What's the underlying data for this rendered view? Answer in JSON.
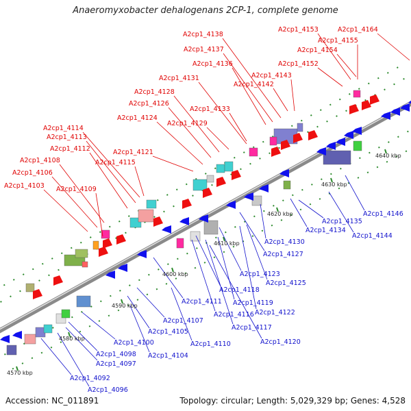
{
  "header": {
    "title": "Anaeromyxobacter dehalogenans 2CP-1, complete genome"
  },
  "footer": {
    "accession": "Accession: NC_011891",
    "topology": "Topology: circular; Length: 5,029,329 bp; Genes: 4,528"
  },
  "kbp_labels": [
    "4570 kbp",
    "4580 kbp",
    "4590 kbp",
    "4600 kbp",
    "4610 kbp",
    "4620 kbp",
    "4630 kbp",
    "4640 kbp"
  ],
  "genes_top": [
    "A2cp1_4103",
    "A2cp1_4106",
    "A2cp1_4108",
    "A2cp1_4109",
    "A2cp1_4112",
    "A2cp1_4113",
    "A2cp1_4114",
    "A2cp1_4115",
    "A2cp1_4121",
    "A2cp1_4124",
    "A2cp1_4126",
    "A2cp1_4128",
    "A2cp1_4129",
    "A2cp1_4131",
    "A2cp1_4133",
    "A2cp1_4136",
    "A2cp1_4137",
    "A2cp1_4138",
    "A2cp1_4142",
    "A2cp1_4143",
    "A2cp1_4152",
    "A2cp1_4153",
    "A2cp1_4154",
    "A2cp1_4155",
    "A2cp1_4164"
  ],
  "genes_bottom": [
    "A2cp1_4092",
    "A2cp1_4096",
    "A2cp1_4097",
    "A2cp1_4098",
    "A2cp1_4100",
    "A2cp1_4104",
    "A2cp1_4105",
    "A2cp1_4107",
    "A2cp1_4110",
    "A2cp1_4111",
    "A2cp1_4116",
    "A2cp1_4117",
    "A2cp1_4118",
    "A2cp1_4119",
    "A2cp1_4120",
    "A2cp1_4122",
    "A2cp1_4123",
    "A2cp1_4125",
    "A2cp1_4127",
    "A2cp1_4130",
    "A2cp1_4134",
    "A2cp1_4135",
    "A2cp1_4144",
    "A2cp1_4146"
  ],
  "colors": {
    "top_label": "#e00000",
    "bottom_label": "#1010cc",
    "backbone": "#888888",
    "tick": "#2e8b2e"
  }
}
